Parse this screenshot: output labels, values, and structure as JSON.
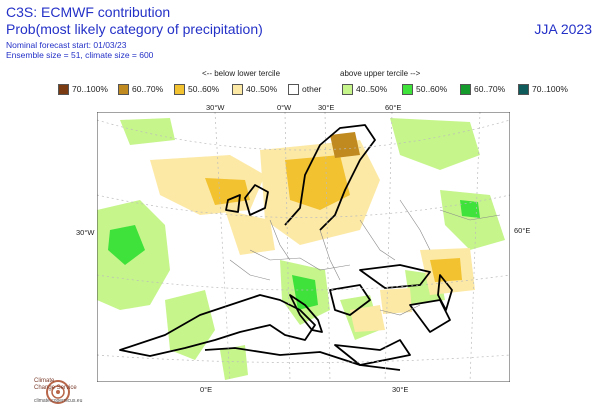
{
  "header": {
    "title": "C3S: ECMWF contribution",
    "subtitle": "Prob(most likely category of precipitation)",
    "forecast_start": "Nominal forecast start: 01/03/23",
    "ensemble": "Ensemble size = 51, climate size = 600",
    "season": "JJA 2023"
  },
  "tercile_labels": {
    "below": "<-- below lower tercile",
    "above": "above upper tercile -->"
  },
  "legend": [
    {
      "label": "70..100%",
      "color": "#7a3b12"
    },
    {
      "label": "60..70%",
      "color": "#c08a20"
    },
    {
      "label": "50..60%",
      "color": "#f2c230"
    },
    {
      "label": "40..50%",
      "color": "#fde9a6"
    },
    {
      "label": "other",
      "color": "#ffffff"
    },
    {
      "label": "40..50%",
      "color": "#c6f58c"
    },
    {
      "label": "50..60%",
      "color": "#3ee23a"
    },
    {
      "label": "60..70%",
      "color": "#159a2c"
    },
    {
      "label": "70..100%",
      "color": "#0f5a5a"
    }
  ],
  "gridlines": {
    "top": [
      "30°W",
      "0°W",
      "30°E",
      "60°E"
    ],
    "left": "30°W",
    "right": "60°E",
    "bottom": [
      "0°E",
      "30°E"
    ]
  },
  "logo": {
    "name_line1": "Climate",
    "name_line2": "Change Service",
    "url": "climate.copernicus.eu"
  }
}
